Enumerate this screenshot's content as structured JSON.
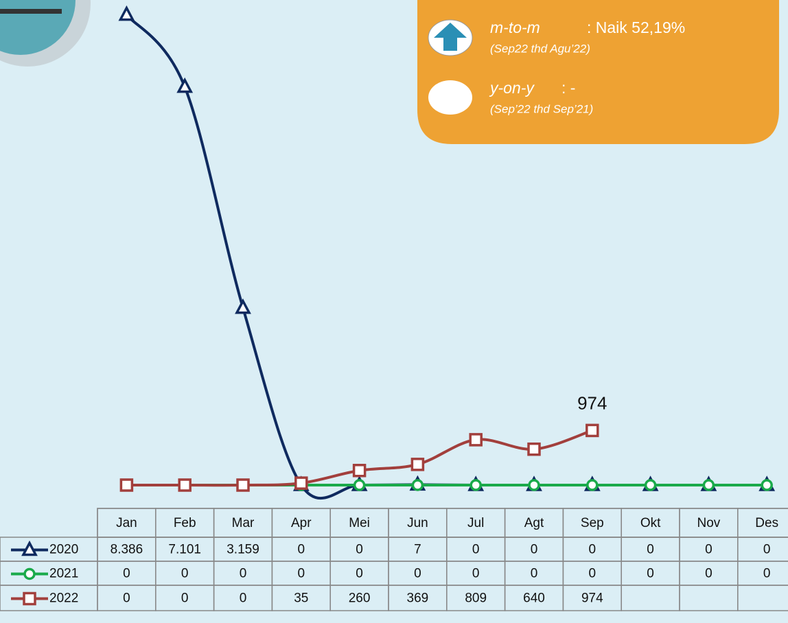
{
  "chart_data": {
    "type": "line",
    "categories": [
      "Jan",
      "Feb",
      "Mar",
      "Apr",
      "Mei",
      "Jun",
      "Jul",
      "Agt",
      "Sep",
      "Okt",
      "Nov",
      "Des"
    ],
    "ylim": [
      0,
      8650
    ],
    "series": [
      {
        "name": "2020",
        "color": "#0f2a5f",
        "marker": "triangle",
        "values": [
          8386,
          7101,
          3159,
          0,
          0,
          7,
          0,
          0,
          0,
          0,
          0,
          0
        ],
        "value_labels": [
          "8.386",
          "7.101",
          "3.159",
          "0",
          "0",
          "7",
          "0",
          "0",
          "0",
          "0",
          "0",
          "0"
        ]
      },
      {
        "name": "2021",
        "color": "#1aaa4a",
        "marker": "circle",
        "values": [
          0,
          0,
          0,
          0,
          0,
          0,
          0,
          0,
          0,
          0,
          0,
          0
        ]
      },
      {
        "name": "2022",
        "color": "#a23f3c",
        "marker": "square",
        "values": [
          0,
          0,
          0,
          35,
          260,
          369,
          809,
          640,
          974,
          null,
          null,
          null
        ]
      }
    ],
    "annotation": {
      "series": 2,
      "index": 8
    },
    "info": {
      "mtm_label": "m-to-m",
      "mtm_text": ": Naik 52,19%",
      "mtm_period": "(Sep22 thd Agu’22)",
      "yoy_label": "y-on-y",
      "yoy_text": ": -",
      "yoy_period": "(Sep’22 thd Sep’21)"
    }
  }
}
